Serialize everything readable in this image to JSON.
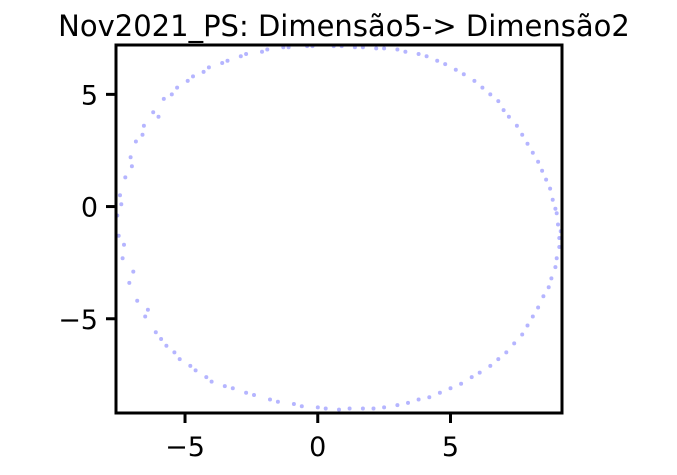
{
  "chart_data": {
    "type": "scatter",
    "title": "Nov2021_PS: Dimensão5-> Dimensão2",
    "xlabel": "",
    "ylabel": "",
    "xlim": [
      -7.6,
      9.2
    ],
    "ylim": [
      -9.2,
      7.2
    ],
    "xticks": [
      -5,
      0,
      5
    ],
    "xtick_labels": [
      "−5",
      "0",
      "5"
    ],
    "yticks": [
      -5,
      0,
      5
    ],
    "ytick_labels": [
      "−5",
      "0",
      "5"
    ],
    "grid": false,
    "legend": "none",
    "point_color": "#5a5aff",
    "point_opacity": 0.45,
    "series": [
      {
        "points": [
          [
            -7.55,
            -0.4
          ],
          [
            -7.45,
            0.5
          ],
          [
            -7.5,
            -1.3
          ],
          [
            -7.35,
            -2.3
          ],
          [
            -7.25,
            1.3
          ],
          [
            -7.1,
            -3.4
          ],
          [
            -7.05,
            2.2
          ],
          [
            -6.85,
            2.9
          ],
          [
            -6.8,
            -4.2
          ],
          [
            -6.55,
            3.6
          ],
          [
            -6.5,
            -4.9
          ],
          [
            -6.2,
            4.2
          ],
          [
            -6.1,
            -5.6
          ],
          [
            -5.8,
            4.8
          ],
          [
            -5.7,
            -6.2
          ],
          [
            -5.3,
            5.3
          ],
          [
            -5.2,
            -6.8
          ],
          [
            -4.7,
            5.8
          ],
          [
            -4.6,
            -7.3
          ],
          [
            -4.1,
            6.2
          ],
          [
            -4.0,
            -7.8
          ],
          [
            -3.4,
            6.5
          ],
          [
            -3.2,
            -8.1
          ],
          [
            -2.7,
            6.8
          ],
          [
            -2.4,
            -8.4
          ],
          [
            -1.9,
            7.0
          ],
          [
            -1.5,
            -8.7
          ],
          [
            -1.1,
            7.1
          ],
          [
            -0.6,
            -8.9
          ],
          [
            -0.2,
            7.15
          ],
          [
            0.3,
            -9.0
          ],
          [
            0.6,
            7.15
          ],
          [
            1.2,
            -9.0
          ],
          [
            1.4,
            7.1
          ],
          [
            2.1,
            -9.0
          ],
          [
            2.2,
            7.05
          ],
          [
            3.0,
            -8.85
          ],
          [
            3.0,
            7.0
          ],
          [
            3.8,
            6.8
          ],
          [
            3.8,
            -8.6
          ],
          [
            4.5,
            6.5
          ],
          [
            4.6,
            -8.3
          ],
          [
            5.2,
            6.1
          ],
          [
            5.4,
            -7.9
          ],
          [
            5.9,
            5.6
          ],
          [
            6.1,
            -7.4
          ],
          [
            6.5,
            5.0
          ],
          [
            6.8,
            -6.8
          ],
          [
            7.0,
            4.3
          ],
          [
            7.4,
            -6.1
          ],
          [
            7.5,
            3.6
          ],
          [
            7.9,
            -5.3
          ],
          [
            7.9,
            2.8
          ],
          [
            8.3,
            -4.5
          ],
          [
            8.3,
            2.0
          ],
          [
            8.7,
            -3.6
          ],
          [
            8.6,
            1.2
          ],
          [
            8.95,
            -2.7
          ],
          [
            8.85,
            0.3
          ],
          [
            9.1,
            -1.8
          ],
          [
            9.05,
            -0.8
          ],
          [
            9.15,
            -1.1
          ],
          [
            9.0,
            -0.3
          ],
          [
            -7.4,
            0.1
          ],
          [
            -7.3,
            -1.7
          ],
          [
            -7.0,
            1.8
          ],
          [
            -6.95,
            -2.9
          ],
          [
            -6.6,
            3.2
          ],
          [
            -6.4,
            -4.6
          ],
          [
            -6.0,
            4.0
          ],
          [
            -5.9,
            -5.9
          ],
          [
            -5.5,
            5.0
          ],
          [
            -5.4,
            -6.5
          ],
          [
            -4.9,
            5.6
          ],
          [
            -4.8,
            -7.1
          ],
          [
            -4.3,
            6.0
          ],
          [
            -4.2,
            -7.6
          ],
          [
            -3.6,
            6.4
          ],
          [
            -3.5,
            -8.0
          ],
          [
            -2.9,
            6.7
          ],
          [
            -2.7,
            -8.3
          ],
          [
            -2.1,
            6.9
          ],
          [
            -1.8,
            -8.6
          ],
          [
            -1.3,
            7.1
          ],
          [
            -0.9,
            -8.8
          ],
          [
            -0.4,
            7.15
          ],
          [
            0.0,
            -8.95
          ],
          [
            0.9,
            7.15
          ],
          [
            0.8,
            -9.05
          ],
          [
            1.7,
            7.1
          ],
          [
            1.7,
            -9.0
          ],
          [
            2.5,
            7.05
          ],
          [
            2.5,
            -8.95
          ],
          [
            3.3,
            6.9
          ],
          [
            3.4,
            -8.75
          ],
          [
            4.1,
            6.7
          ],
          [
            4.2,
            -8.5
          ],
          [
            4.8,
            6.35
          ],
          [
            5.0,
            -8.1
          ],
          [
            5.5,
            5.9
          ],
          [
            5.8,
            -7.6
          ],
          [
            6.2,
            5.3
          ],
          [
            6.5,
            -7.1
          ],
          [
            6.8,
            4.7
          ],
          [
            7.1,
            -6.5
          ],
          [
            7.2,
            4.0
          ],
          [
            7.7,
            -5.7
          ],
          [
            7.7,
            3.2
          ],
          [
            8.1,
            -4.9
          ],
          [
            8.1,
            2.4
          ],
          [
            8.5,
            -4.0
          ],
          [
            8.45,
            1.6
          ],
          [
            8.8,
            -3.2
          ],
          [
            8.75,
            0.8
          ],
          [
            9.0,
            -2.3
          ],
          [
            8.95,
            -0.1
          ],
          [
            9.1,
            -1.4
          ]
        ]
      }
    ]
  }
}
